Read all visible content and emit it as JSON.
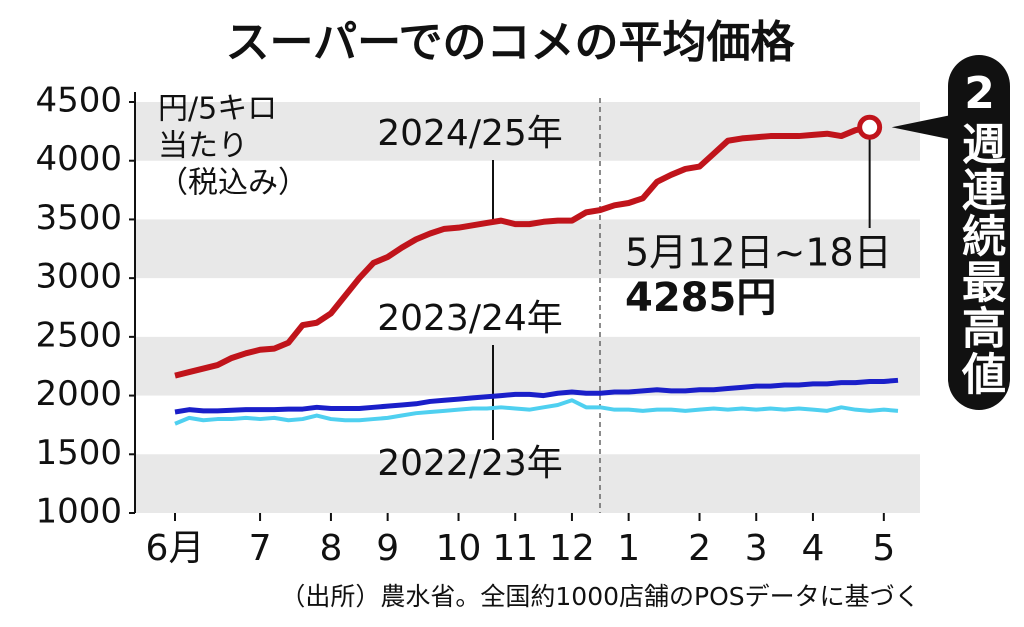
{
  "chart_data": {
    "type": "line",
    "title": "スーパーでのコメの平均価格",
    "y_label": [
      "円/5キロ",
      "当たり",
      "（税込み）"
    ],
    "categories": [
      "6月",
      null,
      null,
      null,
      null,
      null,
      "7",
      null,
      null,
      null,
      null,
      "8",
      null,
      null,
      null,
      "9",
      null,
      null,
      null,
      null,
      "10",
      null,
      null,
      null,
      "11",
      null,
      null,
      null,
      "12",
      null,
      null,
      null,
      "1",
      null,
      null,
      null,
      null,
      "2",
      null,
      null,
      null,
      "3",
      null,
      null,
      null,
      "4",
      null,
      null,
      null,
      null,
      "5",
      null
    ],
    "series": [
      {
        "name": "2024/25年",
        "color": "#c0141b",
        "width": 6,
        "values": [
          2170,
          2200,
          2230,
          2260,
          2320,
          2360,
          2390,
          2400,
          2450,
          2600,
          2620,
          2700,
          2850,
          3000,
          3130,
          3180,
          3260,
          3330,
          3380,
          3420,
          3430,
          3450,
          3470,
          3490,
          3460,
          3460,
          3480,
          3490,
          3490,
          3560,
          3580,
          3620,
          3640,
          3680,
          3820,
          3880,
          3930,
          3950,
          4060,
          4170,
          4190,
          4200,
          4210,
          4210,
          4210,
          4220,
          4230,
          4210,
          4260,
          4285,
          null,
          null
        ]
      },
      {
        "name": "2023/24年",
        "color": "#1a1fc9",
        "width": 5,
        "values": [
          1860,
          1880,
          1870,
          1870,
          1875,
          1880,
          1880,
          1880,
          1885,
          1885,
          1900,
          1890,
          1890,
          1890,
          1900,
          1910,
          1920,
          1930,
          1950,
          1960,
          1970,
          1980,
          1990,
          2000,
          2010,
          2010,
          2000,
          2020,
          2030,
          2020,
          2020,
          2030,
          2030,
          2040,
          2050,
          2040,
          2040,
          2050,
          2050,
          2060,
          2070,
          2080,
          2080,
          2090,
          2090,
          2100,
          2100,
          2110,
          2110,
          2120,
          2120,
          2130
        ]
      },
      {
        "name": "2022/23年",
        "color": "#4fd0f0",
        "width": 4,
        "values": [
          1760,
          1810,
          1790,
          1800,
          1800,
          1810,
          1800,
          1810,
          1790,
          1800,
          1830,
          1800,
          1790,
          1790,
          1800,
          1810,
          1830,
          1850,
          1860,
          1870,
          1880,
          1890,
          1890,
          1900,
          1890,
          1880,
          1900,
          1920,
          1960,
          1900,
          1900,
          1880,
          1880,
          1870,
          1880,
          1880,
          1870,
          1880,
          1890,
          1880,
          1890,
          1880,
          1890,
          1880,
          1890,
          1880,
          1870,
          1900,
          1880,
          1870,
          1880,
          1870
        ]
      }
    ],
    "ylim": [
      1000,
      4500
    ],
    "yticks": [
      1000,
      1500,
      2000,
      2500,
      3000,
      3500,
      4000,
      4500
    ],
    "annotations": [
      "5月12日~18日",
      "4285円"
    ],
    "callout": "2週連続最高値",
    "source": "（出所）農水省。全国約1000店舗のPOSデータに基づく"
  }
}
